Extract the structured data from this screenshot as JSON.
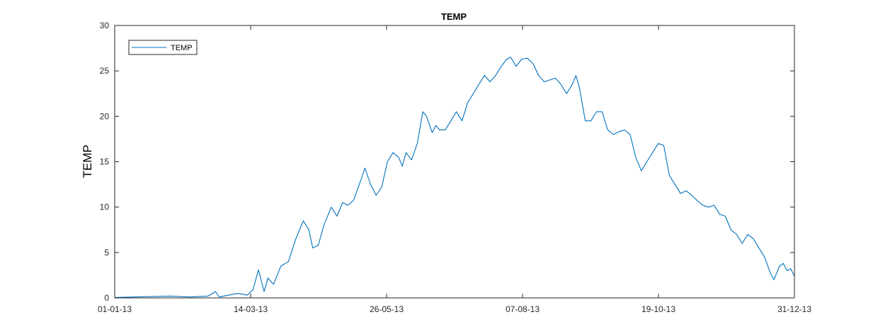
{
  "chart_data": {
    "type": "line",
    "title": "TEMP",
    "xlabel": "",
    "ylabel": "TEMP",
    "x_tick_labels": [
      "01-01-13",
      "14-03-13",
      "26-05-13",
      "07-08-13",
      "19-10-13",
      "31-12-13"
    ],
    "y_tick_labels": [
      "0",
      "5",
      "10",
      "15",
      "20",
      "25",
      "30"
    ],
    "xlim": [
      "2013-01-01",
      "2013-12-31"
    ],
    "ylim": [
      0,
      30
    ],
    "grid": false,
    "legend_position": "top-left",
    "colors": {
      "line": "#0072bd",
      "axes": "#262626"
    },
    "series": [
      {
        "name": "TEMP",
        "points": [
          [
            "2013-01-01",
            0.05
          ],
          [
            "2013-01-11",
            0.1
          ],
          [
            "2013-01-21",
            0.15
          ],
          [
            "2013-01-31",
            0.2
          ],
          [
            "2013-02-10",
            0.1
          ],
          [
            "2013-02-20",
            0.2
          ],
          [
            "2013-02-24",
            0.7
          ],
          [
            "2013-02-26",
            0.1
          ],
          [
            "2013-03-03",
            0.3
          ],
          [
            "2013-03-08",
            0.5
          ],
          [
            "2013-03-13",
            0.3
          ],
          [
            "2013-03-16",
            0.9
          ],
          [
            "2013-03-19",
            3.1
          ],
          [
            "2013-03-22",
            0.7
          ],
          [
            "2013-03-24",
            2.2
          ],
          [
            "2013-03-27",
            1.5
          ],
          [
            "2013-03-31",
            3.5
          ],
          [
            "2013-04-04",
            4.0
          ],
          [
            "2013-04-08",
            6.5
          ],
          [
            "2013-04-12",
            8.5
          ],
          [
            "2013-04-15",
            7.5
          ],
          [
            "2013-04-17",
            5.5
          ],
          [
            "2013-04-20",
            5.8
          ],
          [
            "2013-04-23",
            8.0
          ],
          [
            "2013-04-27",
            10.0
          ],
          [
            "2013-04-30",
            9.0
          ],
          [
            "2013-05-03",
            10.5
          ],
          [
            "2013-05-06",
            10.2
          ],
          [
            "2013-05-09",
            10.8
          ],
          [
            "2013-05-12",
            12.5
          ],
          [
            "2013-05-15",
            14.3
          ],
          [
            "2013-05-18",
            12.5
          ],
          [
            "2013-05-21",
            11.3
          ],
          [
            "2013-05-24",
            12.2
          ],
          [
            "2013-05-27",
            15.0
          ],
          [
            "2013-05-30",
            16.0
          ],
          [
            "2013-06-02",
            15.5
          ],
          [
            "2013-06-04",
            14.5
          ],
          [
            "2013-06-06",
            16.0
          ],
          [
            "2013-06-09",
            15.2
          ],
          [
            "2013-06-12",
            17.0
          ],
          [
            "2013-06-15",
            20.5
          ],
          [
            "2013-06-17",
            20.0
          ],
          [
            "2013-06-20",
            18.2
          ],
          [
            "2013-06-22",
            19.0
          ],
          [
            "2013-06-24",
            18.5
          ],
          [
            "2013-06-27",
            18.5
          ],
          [
            "2013-06-30",
            19.5
          ],
          [
            "2013-07-03",
            20.5
          ],
          [
            "2013-07-06",
            19.5
          ],
          [
            "2013-07-09",
            21.5
          ],
          [
            "2013-07-12",
            22.5
          ],
          [
            "2013-07-15",
            23.5
          ],
          [
            "2013-07-18",
            24.5
          ],
          [
            "2013-07-21",
            23.8
          ],
          [
            "2013-07-24",
            24.5
          ],
          [
            "2013-07-27",
            25.5
          ],
          [
            "2013-07-30",
            26.3
          ],
          [
            "2013-08-01",
            26.5
          ],
          [
            "2013-08-04",
            25.5
          ],
          [
            "2013-08-07",
            26.3
          ],
          [
            "2013-08-10",
            26.4
          ],
          [
            "2013-08-13",
            25.8
          ],
          [
            "2013-08-16",
            24.5
          ],
          [
            "2013-08-19",
            23.8
          ],
          [
            "2013-08-22",
            24.0
          ],
          [
            "2013-08-25",
            24.2
          ],
          [
            "2013-08-28",
            23.5
          ],
          [
            "2013-08-31",
            22.5
          ],
          [
            "2013-09-03",
            23.5
          ],
          [
            "2013-09-05",
            24.5
          ],
          [
            "2013-09-07",
            23.0
          ],
          [
            "2013-09-10",
            19.5
          ],
          [
            "2013-09-13",
            19.5
          ],
          [
            "2013-09-16",
            20.5
          ],
          [
            "2013-09-19",
            20.5
          ],
          [
            "2013-09-22",
            18.5
          ],
          [
            "2013-09-25",
            18.0
          ],
          [
            "2013-09-28",
            18.3
          ],
          [
            "2013-10-01",
            18.5
          ],
          [
            "2013-10-04",
            18.0
          ],
          [
            "2013-10-07",
            15.5
          ],
          [
            "2013-10-10",
            14.0
          ],
          [
            "2013-10-13",
            15.0
          ],
          [
            "2013-10-16",
            16.0
          ],
          [
            "2013-10-19",
            17.0
          ],
          [
            "2013-10-22",
            16.8
          ],
          [
            "2013-10-25",
            13.5
          ],
          [
            "2013-10-28",
            12.5
          ],
          [
            "2013-10-31",
            11.5
          ],
          [
            "2013-11-03",
            11.8
          ],
          [
            "2013-11-06",
            11.3
          ],
          [
            "2013-11-09",
            10.7
          ],
          [
            "2013-11-12",
            10.2
          ],
          [
            "2013-11-15",
            10.0
          ],
          [
            "2013-11-18",
            10.2
          ],
          [
            "2013-11-21",
            9.2
          ],
          [
            "2013-11-24",
            9.0
          ],
          [
            "2013-11-27",
            7.5
          ],
          [
            "2013-11-30",
            7.0
          ],
          [
            "2013-12-03",
            6.0
          ],
          [
            "2013-12-06",
            7.0
          ],
          [
            "2013-12-09",
            6.5
          ],
          [
            "2013-12-12",
            5.5
          ],
          [
            "2013-12-15",
            4.5
          ],
          [
            "2013-12-18",
            2.8
          ],
          [
            "2013-12-20",
            2.0
          ],
          [
            "2013-12-23",
            3.5
          ],
          [
            "2013-12-25",
            3.8
          ],
          [
            "2013-12-27",
            3.0
          ],
          [
            "2013-12-29",
            3.2
          ],
          [
            "2013-12-31",
            2.4
          ]
        ]
      }
    ]
  }
}
